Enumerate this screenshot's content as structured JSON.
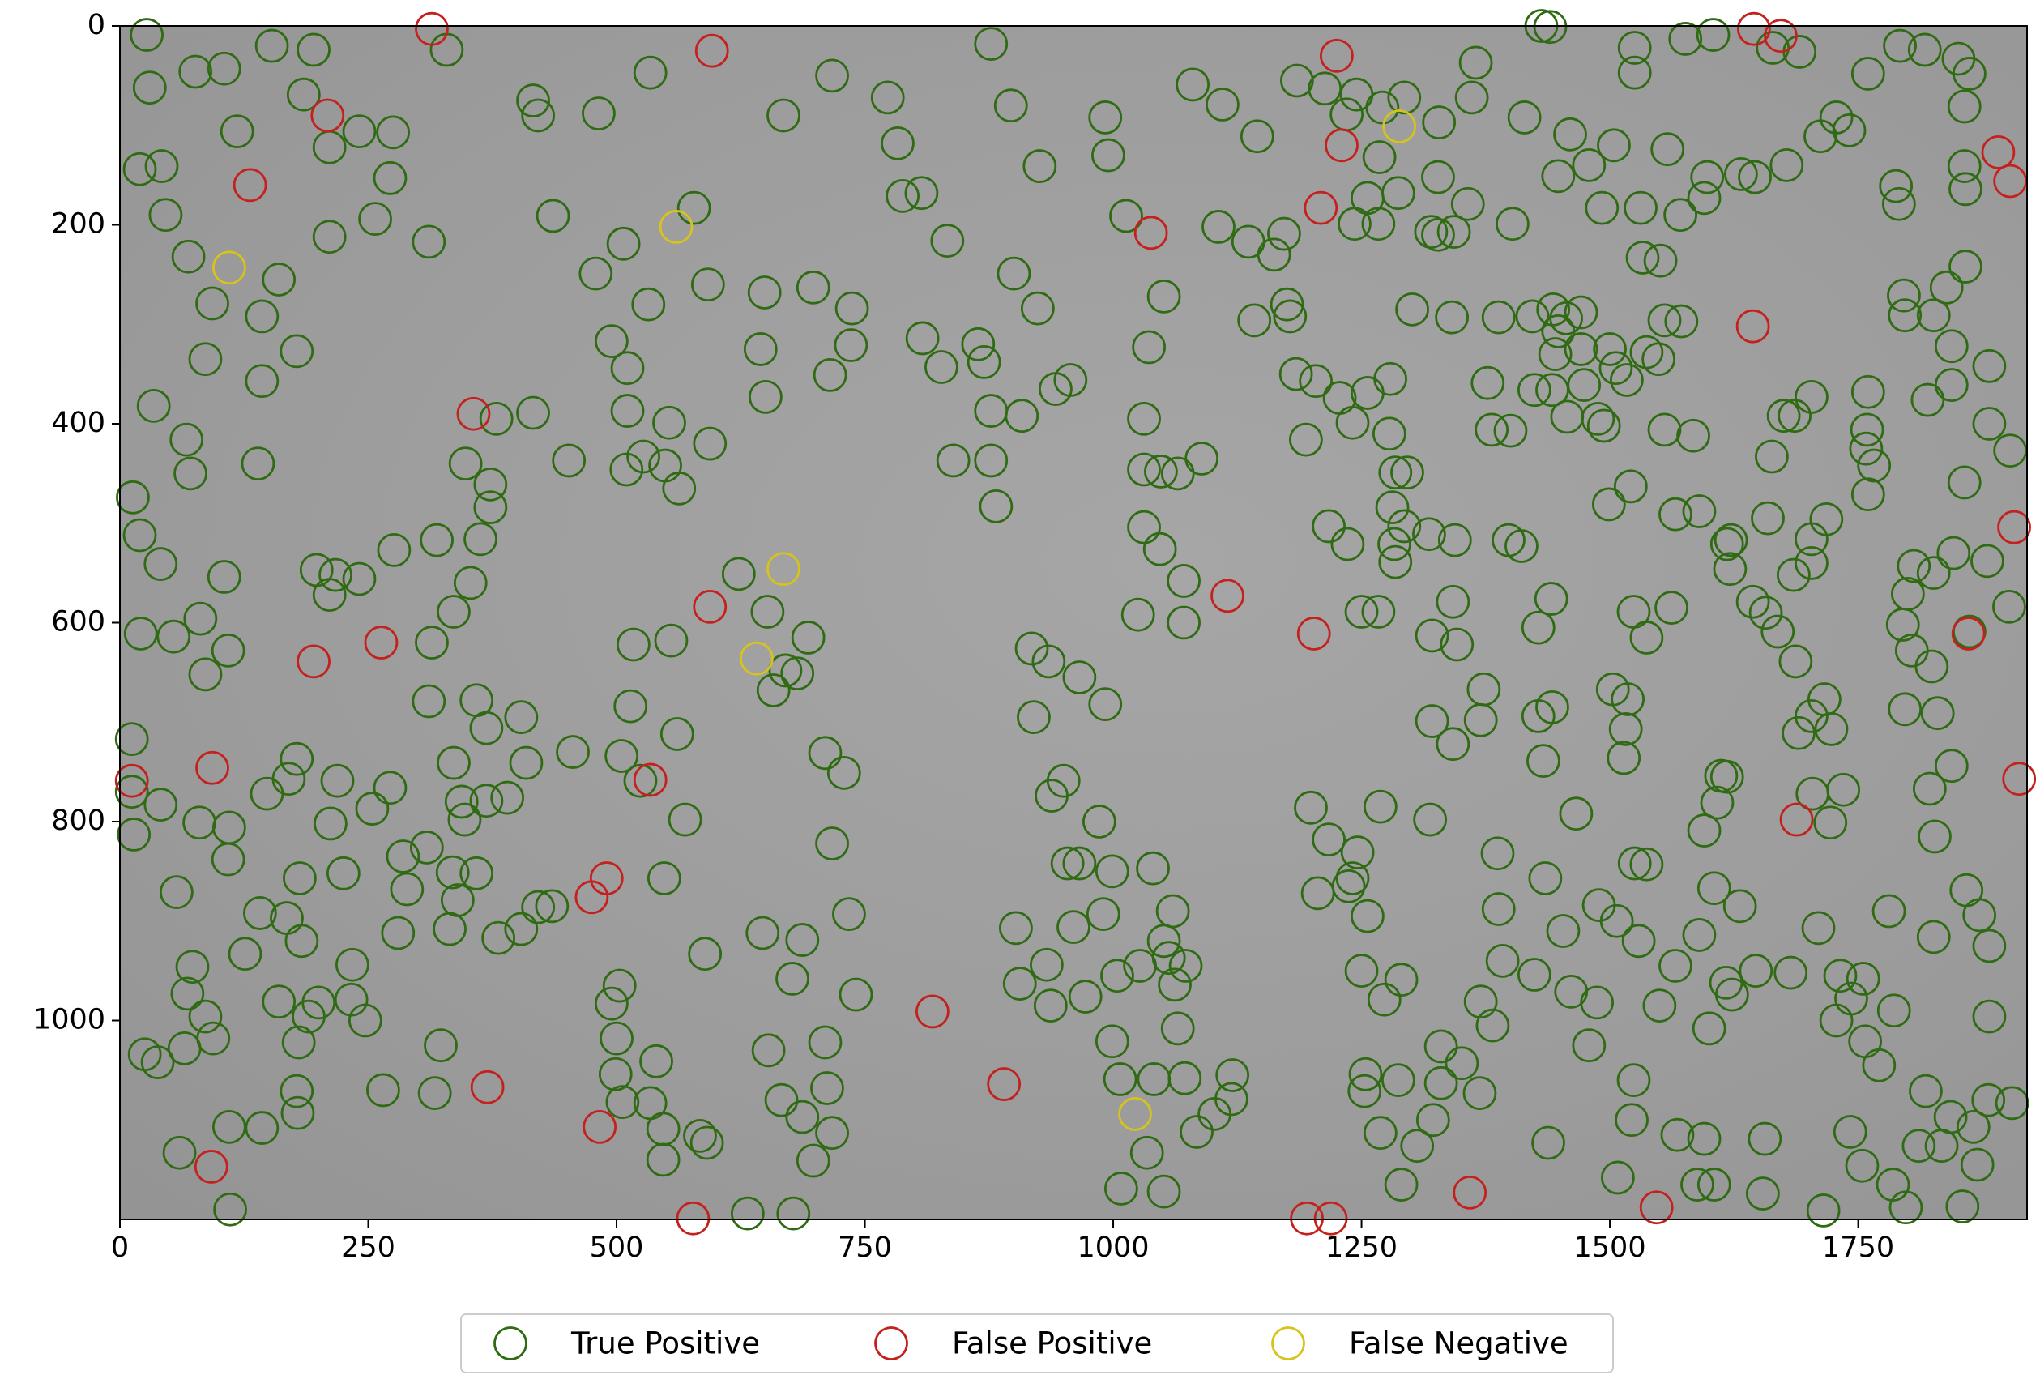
{
  "chart_data": {
    "type": "scatter",
    "xlim": [
      0,
      1920
    ],
    "ylim": [
      1200,
      0
    ],
    "xticks": [
      0,
      250,
      500,
      750,
      1000,
      1250,
      1500,
      1750
    ],
    "yticks": [
      0,
      200,
      400,
      600,
      800,
      1000
    ],
    "legend": "below",
    "series": [
      {
        "name": "True Positive",
        "color": "#2f6b12",
        "x": [
          27,
          30,
          76,
          105,
          42,
          20,
          46,
          69,
          93,
          86,
          34,
          67,
          71,
          13,
          20,
          41,
          54,
          21,
          86,
          109,
          81,
          105,
          139,
          143,
          178,
          160,
          143,
          118,
          153,
          195,
          185,
          211,
          241,
          211,
          257,
          275,
          272,
          311,
          329,
          416,
          421,
          436,
          482,
          534,
          507,
          479,
          532,
          592,
          578,
          645,
          650,
          649,
          698,
          737,
          736,
          715,
          668,
          717,
          773,
          783,
          788,
          807,
          833,
          808,
          827,
          864,
          870,
          877,
          839,
          877,
          882,
          900,
          926,
          897,
          877,
          924,
          942,
          908,
          957,
          992,
          995,
          1013,
          1051,
          1031,
          1036,
          1031,
          1048,
          1065,
          1089,
          1031,
          1047,
          1071,
          1025,
          1071,
          1080,
          1110,
          1145,
          1106,
          1136,
          1162,
          1172,
          1175,
          1178,
          1142,
          1184,
          1204,
          1194,
          1228,
          1241,
          1256,
          1279,
          1278,
          1284,
          1296,
          1281,
          1283,
          1284,
          1293,
          1318,
          1344,
          1217,
          1236,
          1250,
          1267,
          1321,
          1346,
          1321,
          1342,
          1370,
          1373,
          1342,
          1431,
          1440,
          1525,
          1525,
          1576,
          1604,
          1664,
          1691,
          1792,
          1817,
          1851,
          1862,
          1857,
          1728,
          1741,
          1760,
          1712,
          1678,
          1598,
          1558,
          1504,
          1460,
          1448,
          1479,
          1492,
          1531,
          1533,
          1551,
          1571,
          1595,
          1632,
          1646,
          1788,
          1791,
          1857,
          1858,
          1858,
          1839,
          1826,
          1844,
          1882,
          1796,
          1797,
          1820,
          1844,
          1882,
          1903,
          1857,
          1846,
          1880,
          1902,
          1862,
          1806,
          1800,
          1826,
          1795,
          1804,
          1824,
          1830,
          1844,
          1822,
          1827,
          1797,
          1760,
          1759,
          1758,
          1766,
          1760,
          1718,
          1703,
          1703,
          1685,
          1703,
          1675,
          1686,
          1663,
          1659,
          1622,
          1621,
          1644,
          1657,
          1669,
          1687,
          1716,
          1703,
          1690,
          1723,
          1704,
          1735,
          1722,
          198,
          217,
          211,
          241,
          276,
          319,
          353,
          336,
          314,
          363,
          373,
          348,
          373,
          379,
          416,
          452,
          527,
          510,
          511,
          511,
          495,
          553,
          549,
          563,
          594,
          623,
          555,
          517,
          514,
          505,
          524,
          561,
          548,
          569,
          589,
          503,
          495,
          500,
          499,
          506,
          534,
          540,
          547,
          584,
          547,
          591,
          632,
          678,
          717,
          687,
          666,
          712,
          698,
          653,
          710,
          741,
          677,
          647,
          687,
          734,
          717,
          729,
          710,
          682,
          670,
          658,
          693,
          652,
          12,
          12,
          14,
          41,
          57,
          80,
          73,
          68,
          86,
          94,
          65,
          25,
          38,
          60,
          111,
          110,
          143,
          179,
          180,
          178,
          190,
          247,
          265,
          317,
          323,
          233,
          234,
          280,
          289,
          335,
          332,
          340,
          309,
          285,
          272,
          254,
          225,
          212,
          219,
          178,
          170,
          148,
          110,
          109,
          141,
          126,
          168,
          200,
          160,
          181,
          183,
          381,
          359,
          347,
          369,
          404,
          435,
          421,
          409,
          404,
          369,
          359,
          311,
          336,
          344,
          390,
          456,
          918,
          935,
          966,
          992,
          950,
          938,
          920,
          986,
          966,
          954,
          999,
          960,
          990,
          1040,
          1060,
          1051,
          1056,
          1027,
          1073,
          1065,
          1041,
          1007,
          999,
          937,
          906,
          902,
          933,
          972,
          1004,
          1062,
          1072,
          1084,
          1102,
          1119,
          1120,
          1034,
          1051,
          1008,
          1370,
          1392,
          1382,
          1369,
          1351,
          1330,
          1330,
          1322,
          1306,
          1290,
          1269,
          1287,
          1253,
          1254,
          1273,
          1290,
          1250,
          1256,
          1237,
          1241,
          1206,
          1199,
          1217,
          1246,
          1269,
          1319,
          1387,
          1388,
          1453,
          1461,
          1479,
          1487,
          1524,
          1522,
          1508,
          1568,
          1595,
          1588,
          1605,
          1656,
          1654,
          1715,
          1785,
          1798,
          1855,
          1870,
          1881,
          1905,
          1818,
          1811,
          1834,
          1843,
          1866,
          1882,
          1882,
          1859,
          1872,
          1826,
          1781,
          1786,
          1771,
          1757,
          1754,
          1742,
          1728,
          1710,
          1732,
          1755,
          1743,
          1682,
          1647,
          1617,
          1623,
          1631,
          1605,
          1595,
          1608,
          1612,
          1618,
          1590,
          1600,
          1566,
          1550,
          1529,
          1489,
          1507,
          1525,
          1537,
          1514,
          1516,
          1503,
          1518,
          1442,
          1428,
          1433,
          1435,
          1424,
          1438,
          1466,
          1441,
          1428,
          1524,
          1537,
          1562,
          1566,
          1590,
          1618,
          1584,
          1555,
          1521,
          1499,
          1411,
          1398,
          1381,
          1400,
          1377,
          1424,
          1442,
          1457,
          1474,
          1488,
          1494,
          1506,
          1517,
          1549,
          1537,
          1555,
          1572,
          1443,
          1456,
          1471,
          1500,
          1471,
          1448,
          1445,
          1422,
          1388,
          1341,
          1301,
          1402,
          1414,
          1361,
          1365,
          1320,
          1327,
          1343,
          1357,
          1327,
          1328,
          1293,
          1271,
          1245,
          1213,
          1185,
          1235,
          1268,
          1287,
          1256,
          1243,
          1267
        ],
        "values": [
          9,
          62,
          46,
          43,
          141,
          144,
          190,
          232,
          279,
          335,
          382,
          416,
          450,
          474,
          512,
          541,
          614,
          611,
          652,
          628,
          596,
          554,
          440,
          357,
          327,
          255,
          292,
          106,
          20,
          24,
          69,
          122,
          106,
          212,
          194,
          107,
          153,
          217,
          24,
          75,
          90,
          191,
          88,
          47,
          219,
          249,
          280,
          260,
          183,
          325,
          373,
          268,
          263,
          284,
          321,
          351,
          90,
          50,
          72,
          118,
          171,
          168,
          216,
          314,
          343,
          320,
          338,
          387,
          437,
          437,
          483,
          249,
          141,
          80,
          18,
          284,
          365,
          392,
          356,
          92,
          130,
          191,
          272,
          395,
          323,
          446,
          448,
          450,
          435,
          504,
          526,
          558,
          592,
          600,
          59,
          79,
          111,
          202,
          217,
          230,
          209,
          280,
          292,
          296,
          350,
          357,
          416,
          374,
          399,
          369,
          355,
          410,
          449,
          449,
          484,
          521,
          539,
          503,
          511,
          517,
          503,
          521,
          589,
          589,
          613,
          622,
          699,
          722,
          698,
          667,
          579,
          0,
          1,
          22,
          47,
          13,
          9,
          22,
          26,
          20,
          24,
          33,
          48,
          81,
          92,
          105,
          48,
          111,
          140,
          152,
          124,
          120,
          109,
          151,
          140,
          183,
          183,
          233,
          236,
          190,
          173,
          149,
          152,
          161,
          179,
          141,
          164,
          242,
          263,
          291,
          322,
          342,
          271,
          291,
          376,
          361,
          400,
          427,
          459,
          530,
          538,
          584,
          609,
          543,
          571,
          550,
          602,
          628,
          644,
          691,
          744,
          767,
          815,
          687,
          368,
          406,
          425,
          442,
          471,
          496,
          516,
          540,
          552,
          373,
          392,
          392,
          433,
          495,
          517,
          546,
          579,
          590,
          609,
          639,
          677,
          694,
          711,
          707,
          772,
          768,
          801,
          547,
          552,
          572,
          556,
          527,
          517,
          560,
          589,
          620,
          516,
          461,
          440,
          484,
          395,
          389,
          437,
          433,
          446,
          387,
          344,
          317,
          399,
          442,
          465,
          420,
          551,
          618,
          622,
          684,
          734,
          759,
          712,
          857,
          798,
          933,
          965,
          983,
          1018,
          1054,
          1082,
          1083,
          1041,
          1109,
          1116,
          1140,
          1123,
          1194,
          1194,
          1113,
          1097,
          1080,
          1068,
          1141,
          1030,
          1022,
          974,
          958,
          912,
          919,
          893,
          822,
          751,
          731,
          651,
          648,
          668,
          615,
          589,
          717,
          770,
          813,
          783,
          871,
          801,
          946,
          973,
          996,
          1018,
          1028,
          1034,
          1042,
          1133,
          1190,
          1107,
          1108,
          1093,
          1022,
          1071,
          996,
          1000,
          1070,
          1073,
          1025,
          979,
          944,
          912,
          868,
          851,
          908,
          879,
          826,
          835,
          766,
          787,
          852,
          802,
          759,
          737,
          757,
          772,
          806,
          838,
          892,
          933,
          897,
          982,
          981,
          857,
          920,
          917,
          852,
          798,
          779,
          908,
          885,
          886,
          741,
          695,
          706,
          678,
          679,
          741,
          780,
          776,
          730,
          626,
          639,
          655,
          682,
          759,
          774,
          695,
          800,
          842,
          842,
          850,
          906,
          893,
          847,
          890,
          920,
          937,
          945,
          945,
          1008,
          1059,
          1059,
          1021,
          985,
          963,
          907,
          944,
          976,
          955,
          964,
          1058,
          1112,
          1094,
          1079,
          1055,
          1133,
          1172,
          1169,
          981,
          940,
          1005,
          1073,
          1043,
          1026,
          1063,
          1100,
          1126,
          1165,
          1113,
          1060,
          1071,
          1054,
          979,
          959,
          950,
          895,
          865,
          857,
          872,
          786,
          818,
          831,
          785,
          798,
          832,
          888,
          910,
          971,
          1025,
          982,
          1060,
          1100,
          1158,
          1115,
          1119,
          1165,
          1165,
          1119,
          1174,
          1191,
          1165,
          1188,
          1187,
          1145,
          1080,
          1083,
          1071,
          1126,
          1126,
          1097,
          1107,
          996,
          925,
          869,
          894,
          916,
          890,
          990,
          1045,
          1021,
          1146,
          1112,
          1000,
          907,
          955,
          958,
          978,
          952,
          950,
          962,
          974,
          885,
          867,
          809,
          781,
          754,
          755,
          914,
          1008,
          945,
          985,
          920,
          884,
          900,
          842,
          843,
          736,
          707,
          667,
          677,
          685,
          694,
          739,
          857,
          954,
          1123,
          792,
          576,
          605,
          589,
          615,
          585,
          491,
          488,
          521,
          412,
          406,
          463,
          481,
          523,
          517,
          406,
          407,
          359,
          366,
          366,
          393,
          361,
          395,
          402,
          344,
          356,
          335,
          328,
          296,
          297,
          285,
          294,
          325,
          325,
          288,
          307,
          330,
          292,
          293,
          293,
          285,
          199,
          92,
          72,
          37,
          207,
          210,
          207,
          179,
          152,
          97,
          72,
          82,
          69,
          63,
          55,
          89,
          132,
          168,
          173,
          199,
          199
        ]
      },
      {
        "name": "False Positive",
        "color": "#c4201d",
        "x": [
          314,
          596,
          1225,
          209,
          131,
          1230,
          1209,
          1038,
          1891,
          1903,
          1644,
          356,
          594,
          1115,
          1202,
          1861,
          195,
          263,
          1907,
          12,
          93,
          534,
          1912,
          1688,
          475,
          490,
          818,
          890,
          370,
          483,
          92,
          1359,
          1547,
          1195,
          1219,
          577,
          1645,
          1672
        ],
        "values": [
          3,
          25,
          30,
          90,
          160,
          120,
          183,
          208,
          127,
          156,
          302,
          390,
          584,
          573,
          611,
          611,
          639,
          620,
          504,
          759,
          746,
          758,
          757,
          798,
          876,
          857,
          991,
          1064,
          1067,
          1107,
          1147,
          1173,
          1188,
          1199,
          1199,
          1199,
          3,
          10
        ]
      },
      {
        "name": "False Negative",
        "color": "#d6c31c",
        "x": [
          110,
          560,
          1288,
          668,
          641,
          1022
        ],
        "values": [
          243,
          202,
          101,
          546,
          636,
          1094
        ]
      }
    ]
  }
}
